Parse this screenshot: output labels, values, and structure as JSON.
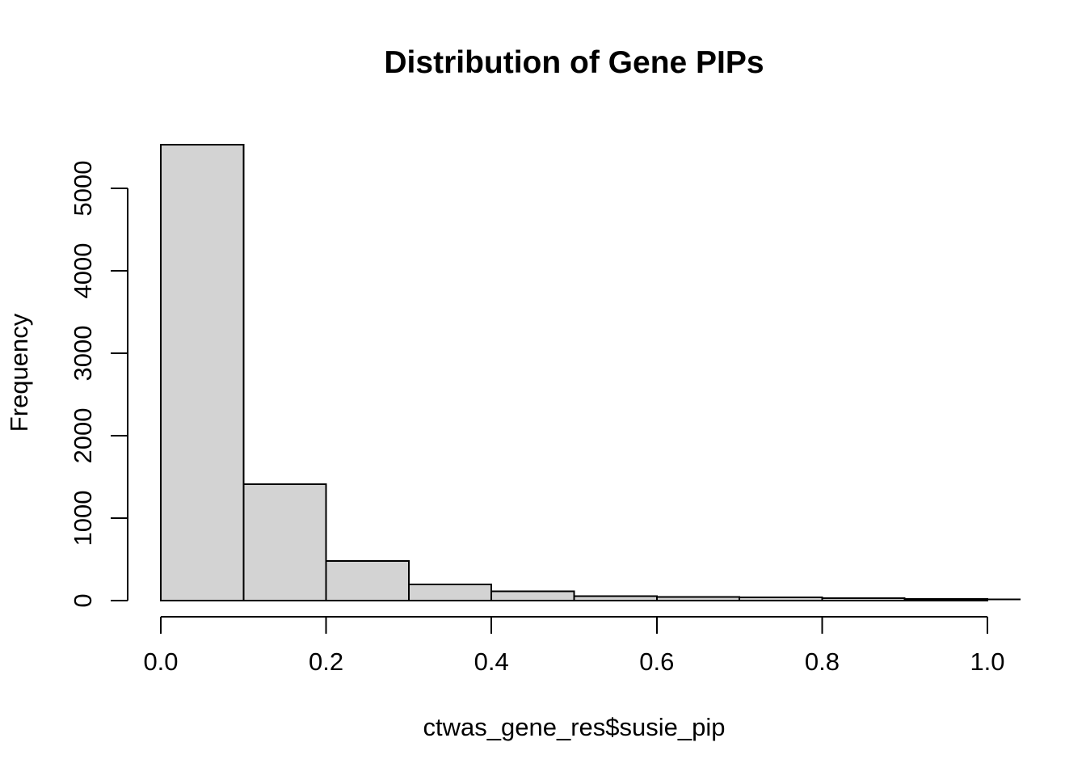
{
  "chart_data": {
    "type": "bar",
    "subtype": "histogram",
    "title": "Distribution of Gene PIPs",
    "xlabel": "ctwas_gene_res$susie_pip",
    "ylabel": "Frequency",
    "bins": {
      "start": 0.0,
      "width": 0.1,
      "edges": [
        0.0,
        0.1,
        0.2,
        0.3,
        0.4,
        0.5,
        0.6,
        0.7,
        0.8,
        0.9,
        1.0
      ]
    },
    "counts": [
      5530,
      1410,
      480,
      195,
      115,
      55,
      45,
      40,
      28,
      22
    ],
    "x_tick_values": [
      0.0,
      0.2,
      0.4,
      0.6,
      0.8,
      1.0
    ],
    "x_tick_labels": [
      "0.0",
      "0.2",
      "0.4",
      "0.6",
      "0.8",
      "1.0"
    ],
    "y_tick_values": [
      0,
      1000,
      2000,
      3000,
      4000,
      5000
    ],
    "y_tick_labels": [
      "0",
      "1000",
      "2000",
      "3000",
      "4000",
      "5000"
    ],
    "xlim": [
      0.0,
      1.04
    ],
    "ylim": [
      0,
      5530
    ],
    "grid": false,
    "legend_position": "none",
    "colors": {
      "bar_fill": "#D3D3D3",
      "bar_stroke": "#000000",
      "axis": "#000000",
      "text": "#000000",
      "background": "#FFFFFF"
    }
  }
}
